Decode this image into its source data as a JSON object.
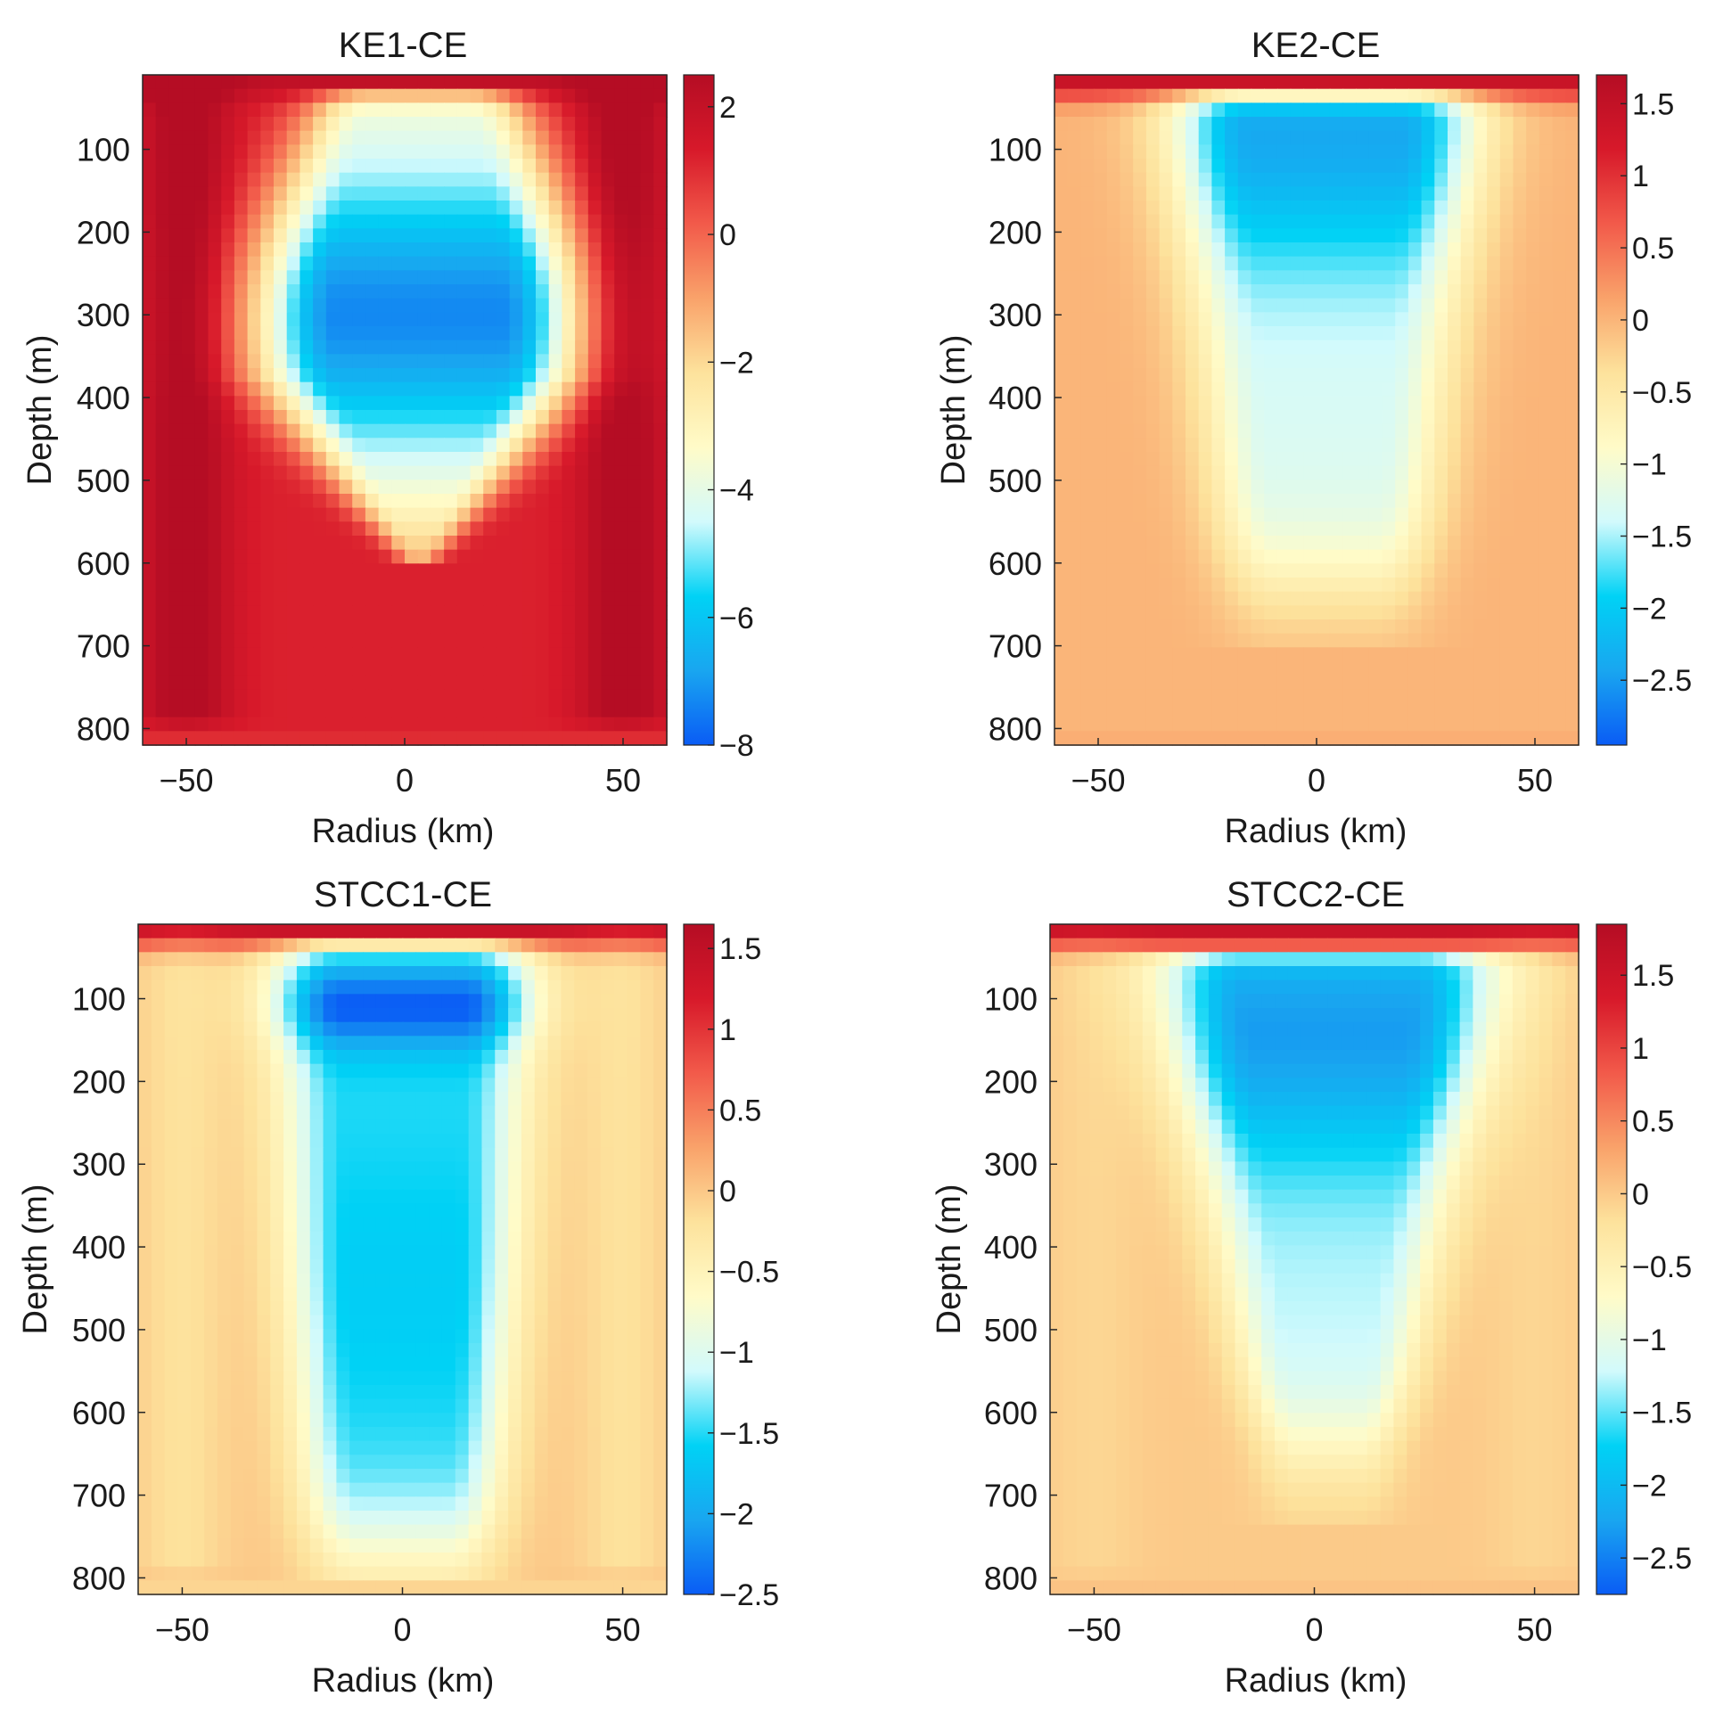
{
  "figure": {
    "panel_count": 4
  },
  "colorscale": [
    "#0a5cf5",
    "#19a6f0",
    "#00d2f5",
    "#d2fafc",
    "#fffbc8",
    "#fde29c",
    "#f9a26a",
    "#f25a4a",
    "#d7192a",
    "#b50d24"
  ],
  "chart_data": [
    {
      "type": "heatmap",
      "title": "KE1-CE",
      "xlabel": "Radius (km)",
      "ylabel": "Depth (m)",
      "xlim": [
        -60,
        60
      ],
      "ylim": [
        10,
        820
      ],
      "xticks": [
        -50,
        0,
        50
      ],
      "yticks": [
        100,
        200,
        300,
        400,
        500,
        600,
        700,
        800
      ],
      "clim": [
        -8,
        2.5
      ],
      "cticks": [
        2,
        0,
        -2,
        -4,
        -6,
        -8
      ],
      "core": {
        "x": 8,
        "y": 300,
        "min": -7.3,
        "shape": "bowl",
        "r_top": 20,
        "r_mid": 34,
        "r_bot": 24,
        "d_top": 30,
        "d_bot": 600,
        "edge": 1.6
      }
    },
    {
      "type": "heatmap",
      "title": "KE2-CE",
      "xlabel": "Radius (km)",
      "ylabel": "Depth (m)",
      "xlim": [
        -60,
        60
      ],
      "ylim": [
        10,
        820
      ],
      "xticks": [
        -50,
        0,
        50
      ],
      "yticks": [
        100,
        200,
        300,
        400,
        500,
        600,
        700,
        800
      ],
      "clim": [
        -2.95,
        1.7
      ],
      "cticks": [
        1.5,
        1,
        0.5,
        0,
        -0.5,
        -1,
        -1.5,
        -2,
        -2.5
      ],
      "core": {
        "x": 5,
        "y": 80,
        "min": -2.4,
        "shape": "column",
        "r_top": 32,
        "r_mid": 28,
        "r_bot": 20,
        "d_top": 30,
        "d_bot": 620,
        "edge": 0.0
      }
    },
    {
      "type": "heatmap",
      "title": "STCC1-CE",
      "xlabel": "Radius (km)",
      "ylabel": "Depth (m)",
      "xlim": [
        -60,
        60
      ],
      "ylim": [
        10,
        820
      ],
      "xticks": [
        -50,
        0,
        50
      ],
      "yticks": [
        100,
        200,
        300,
        400,
        500,
        600,
        700,
        800
      ],
      "clim": [
        -2.5,
        1.65
      ],
      "cticks": [
        1.5,
        1,
        0.5,
        0,
        -0.5,
        -1,
        -1.5,
        -2,
        -2.5
      ],
      "core": {
        "x": 0,
        "y": 110,
        "min": -2.5,
        "shape": "two-lobe",
        "r_top": 26,
        "r_mid": 20,
        "r_bot": 18,
        "d_top": 30,
        "d_bot": 760,
        "edge": -0.2
      }
    },
    {
      "type": "heatmap",
      "title": "STCC2-CE",
      "xlabel": "Radius (km)",
      "ylabel": "Depth (m)",
      "xlim": [
        -60,
        60
      ],
      "ylim": [
        10,
        820
      ],
      "xticks": [
        -50,
        0,
        50
      ],
      "yticks": [
        100,
        200,
        300,
        400,
        500,
        600,
        700,
        800
      ],
      "clim": [
        -2.75,
        1.85
      ],
      "cticks": [
        1.5,
        1,
        0.5,
        0,
        -0.5,
        -1,
        -1.5,
        -2,
        -2.5
      ],
      "core": {
        "x": 8,
        "y": 140,
        "min": -2.3,
        "shape": "funnel",
        "r_top": 36,
        "r_mid": 22,
        "r_bot": 12,
        "d_top": 40,
        "d_bot": 640,
        "edge": -0.1
      }
    }
  ]
}
